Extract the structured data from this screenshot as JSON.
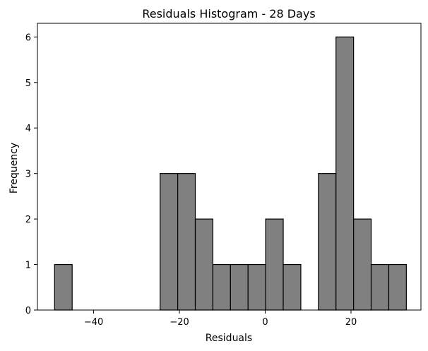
{
  "chart_data": {
    "type": "bar",
    "title": "Residuals Histogram - 28 Days",
    "xlabel": "Residuals",
    "ylabel": "Frequency",
    "xlim": [
      -53.1,
      36.3
    ],
    "ylim": [
      0,
      6.3
    ],
    "xticks": [
      -40,
      -20,
      0,
      20
    ],
    "xtick_labels": [
      "−40",
      "−20",
      "0",
      "20"
    ],
    "yticks": [
      0,
      1,
      2,
      3,
      4,
      5,
      6
    ],
    "ytick_labels": [
      "0",
      "1",
      "2",
      "3",
      "4",
      "5",
      "6"
    ],
    "bin_start": -49.1,
    "bin_width": 4.1,
    "counts": [
      1,
      0,
      0,
      0,
      0,
      0,
      3,
      3,
      2,
      1,
      1,
      1,
      2,
      1,
      0,
      3,
      6,
      2,
      1,
      1
    ],
    "grid": false,
    "colors": {
      "bar_fill": "#808080",
      "bar_edge": "#000000"
    }
  }
}
